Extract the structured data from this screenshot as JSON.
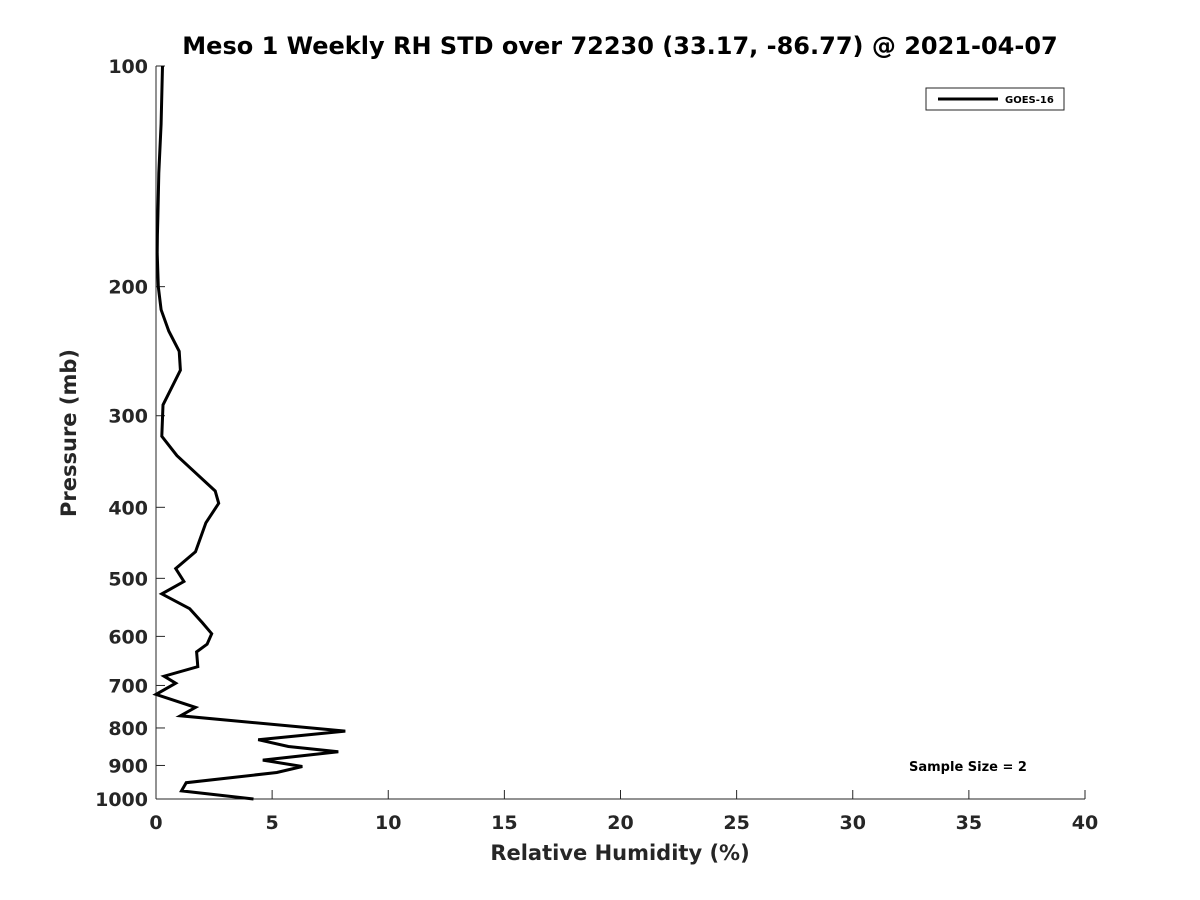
{
  "chart_data": {
    "type": "line",
    "title": "Meso 1 Weekly RH STD over 72230 (33.17, -86.77) @ 2021-04-07",
    "xlabel": "Relative Humidity (%)",
    "ylabel": "Pressure (mb)",
    "xlim": [
      0,
      40
    ],
    "ylim": [
      100,
      1000
    ],
    "yscale": "log",
    "y_reversed": true,
    "x_ticks": [
      0,
      5,
      10,
      15,
      20,
      25,
      30,
      35,
      40
    ],
    "x_tick_labels": [
      "0",
      "5",
      "10",
      "15",
      "20",
      "25",
      "30",
      "35",
      "40"
    ],
    "y_ticks": [
      100,
      200,
      300,
      400,
      500,
      600,
      700,
      800,
      900,
      1000
    ],
    "y_tick_labels": [
      "100",
      "200",
      "300",
      "400",
      "500",
      "600",
      "700",
      "800",
      "900",
      "1000"
    ],
    "grid": false,
    "legend_position": "top-right",
    "annotation": "Sample Size = 2",
    "series": [
      {
        "name": "GOES-16",
        "color": "#000000",
        "x": [
          0.28,
          0.22,
          0.12,
          0.08,
          0.06,
          0.05,
          0.1,
          0.22,
          0.55,
          1.0,
          1.05,
          0.3,
          0.25,
          0.9,
          1.75,
          2.55,
          2.7,
          2.15,
          1.7,
          0.85,
          1.2,
          0.25,
          1.45,
          2.0,
          2.4,
          2.2,
          1.75,
          1.8,
          0.35,
          0.85,
          0.0,
          1.7,
          1.05,
          8.15,
          4.4,
          5.7,
          7.85,
          4.6,
          6.3,
          5.2,
          1.3,
          1.1,
          4.2
        ],
        "y": [
          100,
          120,
          140,
          160,
          170,
          180,
          200,
          215,
          230,
          245,
          260,
          290,
          320,
          340,
          360,
          380,
          395,
          420,
          460,
          485,
          505,
          525,
          550,
          575,
          595,
          615,
          630,
          660,
          680,
          695,
          720,
          750,
          770,
          808,
          830,
          848,
          862,
          885,
          903,
          920,
          950,
          975,
          1000
        ]
      }
    ]
  }
}
